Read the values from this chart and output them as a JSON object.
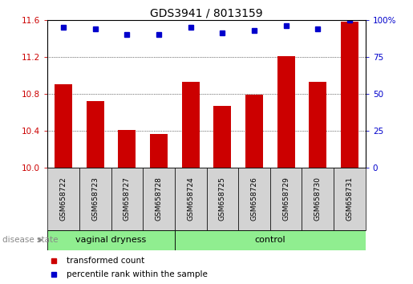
{
  "title": "GDS3941 / 8013159",
  "samples": [
    "GSM658722",
    "GSM658723",
    "GSM658727",
    "GSM658728",
    "GSM658724",
    "GSM658725",
    "GSM658726",
    "GSM658729",
    "GSM658730",
    "GSM658731"
  ],
  "bar_values": [
    10.9,
    10.72,
    10.41,
    10.36,
    10.93,
    10.67,
    10.79,
    11.21,
    10.93,
    11.58
  ],
  "dot_values": [
    95,
    94,
    90,
    90,
    95,
    91,
    93,
    96,
    94,
    100
  ],
  "groups": [
    {
      "label": "vaginal dryness",
      "start": 0,
      "end": 4
    },
    {
      "label": "control",
      "start": 4,
      "end": 10
    }
  ],
  "group_boundary": 4,
  "ylim_left": [
    10.0,
    11.6
  ],
  "ylim_right": [
    0,
    100
  ],
  "yticks_left": [
    10.0,
    10.4,
    10.8,
    11.2,
    11.6
  ],
  "yticks_right": [
    0,
    25,
    50,
    75,
    100
  ],
  "bar_color": "#CC0000",
  "dot_color": "#0000CC",
  "bar_width": 0.55,
  "background_color": "#ffffff",
  "tick_label_color_left": "#CC0000",
  "tick_label_color_right": "#0000CC",
  "legend_bar_label": "transformed count",
  "legend_dot_label": "percentile rank within the sample",
  "disease_state_label": "disease state",
  "group_bg_color": "#d3d3d3",
  "group_label_bg_color": "#90EE90",
  "title_fontsize": 10,
  "tick_fontsize": 7.5,
  "sample_fontsize": 6.5,
  "group_fontsize": 8,
  "legend_fontsize": 7.5
}
